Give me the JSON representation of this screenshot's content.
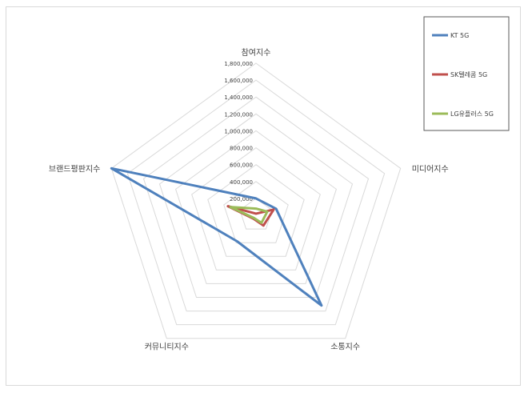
{
  "chart_data": {
    "type": "radar",
    "axes": [
      "참여지수",
      "미디어지수",
      "소통지수",
      "커뮤니티지수",
      "브랜드평판지수"
    ],
    "rlim": [
      0,
      1800000
    ],
    "ticks": [
      200000,
      400000,
      600000,
      800000,
      1000000,
      1200000,
      1400000,
      1600000,
      1800000
    ],
    "tick_labels": [
      "200,000",
      "400,000",
      "600,000",
      "800,000",
      "1,000,000",
      "1,200,000",
      "1,400,000",
      "1,600,000",
      "1,800,000"
    ],
    "grid": true,
    "legend_position": "top-right",
    "series": [
      {
        "name": "KT 5G",
        "color": "#4f81bd",
        "values": [
          200000,
          250000,
          1320000,
          380000,
          1800000
        ]
      },
      {
        "name": "SK텔레콤 5G",
        "color": "#c0504d",
        "values": [
          20000,
          220000,
          150000,
          50000,
          350000
        ]
      },
      {
        "name": "LG유플러스 5G",
        "color": "#9bbb59",
        "values": [
          80000,
          140000,
          110000,
          40000,
          320000
        ]
      }
    ]
  }
}
